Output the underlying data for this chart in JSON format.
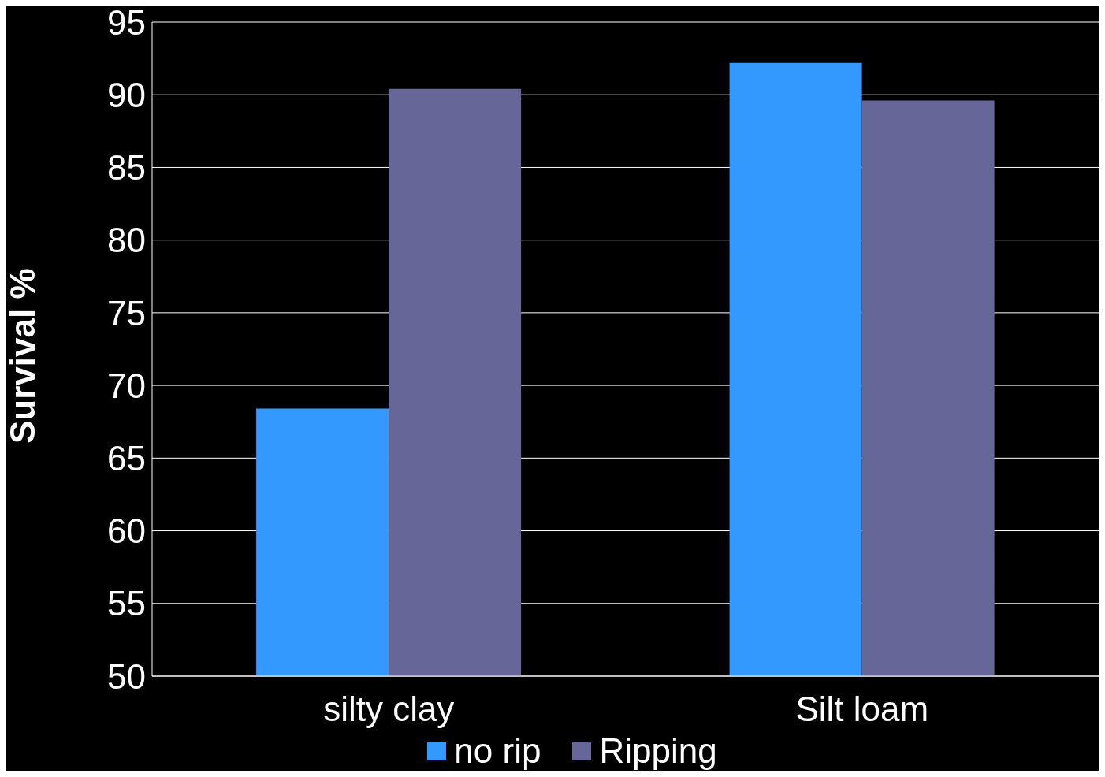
{
  "chart_data": {
    "type": "bar",
    "ylabel": "Survival %",
    "categories": [
      "silty clay",
      "Silt loam"
    ],
    "series": [
      {
        "name": "no rip",
        "color": "#3399ff",
        "values": [
          68.4,
          92.2
        ]
      },
      {
        "name": "Ripping",
        "color": "#666699",
        "values": [
          90.4,
          89.6
        ]
      }
    ],
    "ylim": [
      50,
      95
    ],
    "yticks": [
      50,
      55,
      60,
      65,
      70,
      75,
      80,
      85,
      90,
      95
    ],
    "grid": "y",
    "legend": "bottom"
  }
}
